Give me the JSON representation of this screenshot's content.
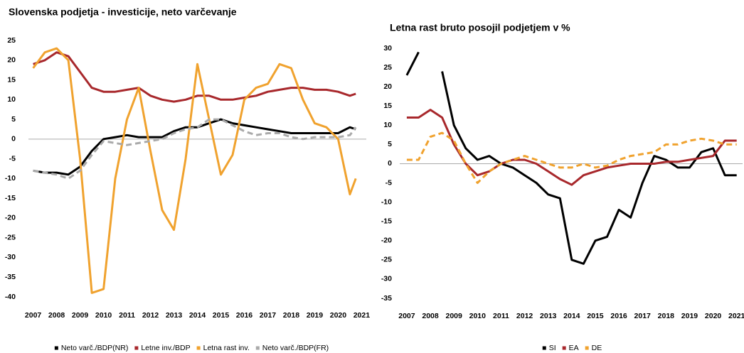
{
  "chart_data": [
    {
      "type": "line",
      "title": "Slovenska podjetja - investicije, neto varčevanje",
      "x": [
        2007,
        2007.5,
        2008,
        2008.5,
        2009,
        2009.5,
        2010,
        2010.5,
        2011,
        2011.5,
        2012,
        2012.5,
        2013,
        2013.5,
        2014,
        2014.5,
        2015,
        2015.5,
        2016,
        2016.5,
        2017,
        2017.5,
        2018,
        2018.5,
        2019,
        2019.5,
        2020,
        2020.5,
        2020.75
      ],
      "series": [
        {
          "name": "Neto varč./BDP(NR)",
          "color": "#000000",
          "dash": false,
          "values": [
            -8,
            -8.5,
            -8.5,
            -9,
            -7,
            -3,
            0,
            0.5,
            1,
            0.5,
            0.5,
            0.5,
            2,
            3,
            3,
            4,
            5,
            4,
            3.5,
            3,
            2.5,
            2,
            1.5,
            1.5,
            1.5,
            1.5,
            1.5,
            3,
            2.5
          ]
        },
        {
          "name": "Letne inv./BDP",
          "color": "#a8282c",
          "dash": false,
          "values": [
            19,
            20,
            22,
            21,
            17,
            13,
            12,
            12,
            12.5,
            13,
            11,
            10,
            9.5,
            10,
            11,
            11,
            10,
            10,
            10.5,
            11,
            12,
            12.5,
            13,
            13,
            12.5,
            12.5,
            12,
            11,
            11.5
          ]
        },
        {
          "name": "Letna rast inv.",
          "color": "#f0a22e",
          "dash": false,
          "values": [
            18,
            22,
            23,
            20,
            -5,
            -39,
            -38,
            -10,
            5,
            13,
            -3,
            -18,
            -23,
            -5,
            19,
            5,
            -9,
            -4,
            10,
            13,
            14,
            19,
            18,
            10,
            4,
            3,
            0,
            -14,
            -10
          ]
        },
        {
          "name": "Neto varč./BDP(FR)",
          "color": "#aaaaaa",
          "dash": true,
          "values": [
            -8,
            -8.5,
            -9,
            -10,
            -8,
            -4,
            -0.5,
            -1,
            -1.5,
            -1,
            -0.5,
            0,
            1.5,
            2.5,
            3,
            5,
            5,
            3.5,
            2,
            1,
            1.5,
            1.5,
            0.5,
            0,
            0.5,
            0.5,
            0.5,
            1,
            3
          ]
        }
      ],
      "xlim": [
        2006.8,
        2021.2
      ],
      "xticks": [
        2007,
        2008,
        2009,
        2010,
        2011,
        2012,
        2013,
        2014,
        2015,
        2016,
        2017,
        2018,
        2019,
        2020,
        2021
      ],
      "ylim": [
        -40,
        25
      ],
      "yticks": [
        25,
        20,
        15,
        10,
        5,
        0,
        -5,
        -10,
        -15,
        -20,
        -25,
        -30,
        -35,
        -40
      ]
    },
    {
      "type": "line",
      "title": "Letna rast bruto posojil podjetjem v %",
      "x": [
        2007,
        2007.5,
        2008,
        2008.5,
        2009,
        2009.5,
        2010,
        2010.5,
        2011,
        2011.5,
        2012,
        2012.5,
        2013,
        2013.5,
        2014,
        2014.5,
        2015,
        2015.5,
        2016,
        2016.5,
        2017,
        2017.5,
        2018,
        2018.5,
        2019,
        2019.5,
        2020,
        2020.5,
        2021
      ],
      "series": [
        {
          "name": "SI",
          "color": "#000000",
          "dash": false,
          "values": [
            23,
            29,
            null,
            24,
            10,
            4,
            1,
            2,
            0,
            -1,
            -3,
            -5,
            -8,
            -9,
            -25,
            -26,
            -20,
            -19,
            -12,
            -14,
            -5,
            2,
            1,
            -1,
            -1,
            3,
            4,
            -3,
            -3
          ]
        },
        {
          "name": "EA",
          "color": "#a8282c",
          "dash": false,
          "values": [
            12,
            12,
            14,
            12,
            5,
            0,
            -3,
            -2,
            0,
            1,
            1,
            0,
            -2,
            -4,
            -5.5,
            -3,
            -2,
            -1,
            -0.5,
            0,
            0,
            0,
            0.5,
            0.5,
            1,
            1.5,
            2,
            6,
            6
          ]
        },
        {
          "name": "DE",
          "color": "#f0a22e",
          "dash": true,
          "values": [
            1,
            1,
            7,
            8,
            6,
            0,
            -5,
            -2,
            0,
            1,
            2,
            1,
            0,
            -1,
            -1,
            0,
            -1,
            -0.5,
            1,
            2,
            2.5,
            3,
            5,
            5,
            6,
            6.5,
            6,
            5,
            5
          ]
        }
      ],
      "xlim": [
        2006.7,
        2021.25
      ],
      "xticks": [
        2007,
        2008,
        2009,
        2010,
        2011,
        2012,
        2013,
        2014,
        2015,
        2016,
        2017,
        2018,
        2019,
        2020,
        2021
      ],
      "ylim": [
        -35,
        30
      ],
      "yticks": [
        30,
        25,
        20,
        15,
        10,
        5,
        0,
        -5,
        -10,
        -15,
        -20,
        -25,
        -30,
        -35
      ]
    }
  ]
}
